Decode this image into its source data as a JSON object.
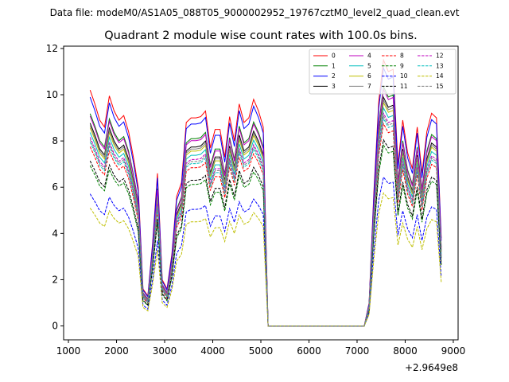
{
  "figure": {
    "suptitle": "Data file: modeM0/AS1A05_088T05_9000002952_19767cztM0_level2_quad_clean.evt"
  },
  "chart_data": {
    "type": "line",
    "title": "Quadrant 2 module wise count rates with 100.0s bins.",
    "xlabel": "",
    "ylabel": "",
    "x_offset_label": "+2.9649e8",
    "xlim": [
      900,
      9100
    ],
    "ylim": [
      -0.6,
      12.1
    ],
    "xticks": [
      1000,
      2000,
      3000,
      4000,
      5000,
      6000,
      7000,
      8000,
      9000
    ],
    "xtick_labels": [
      "1000",
      "2000",
      "3000",
      "4000",
      "5000",
      "6000",
      "7000",
      "8000",
      "9000"
    ],
    "yticks": [
      0,
      2,
      4,
      6,
      8,
      10,
      12
    ],
    "ytick_labels": [
      "0",
      "2",
      "4",
      "6",
      "8",
      "10",
      "12"
    ],
    "grid": false,
    "legend": {
      "placement": "top-right",
      "columns": 4
    },
    "x": [
      1450,
      1550,
      1650,
      1750,
      1850,
      1950,
      2050,
      2150,
      2250,
      2350,
      2450,
      2550,
      2650,
      2750,
      2850,
      2950,
      3050,
      3150,
      3250,
      3350,
      3450,
      3550,
      3650,
      3750,
      3850,
      3950,
      4050,
      4150,
      4250,
      4350,
      4450,
      4550,
      4650,
      4750,
      4850,
      4950,
      5050,
      5150,
      5250,
      5350,
      5450,
      5550,
      5650,
      5750,
      5850,
      5950,
      6050,
      6150,
      6250,
      6350,
      6450,
      6550,
      6650,
      6750,
      6850,
      6950,
      7050,
      7150,
      7250,
      7350,
      7450,
      7550,
      7650,
      7750,
      7850,
      7950,
      8050,
      8150,
      8250,
      8350,
      8450,
      8550,
      8650,
      8750
    ],
    "series": [
      {
        "name": "0",
        "color": "#ff0000",
        "dash": "solid",
        "scale": 1.0,
        "values": [
          10.2,
          9.6,
          8.9,
          8.6,
          9.95,
          9.3,
          8.9,
          9.1,
          8.4,
          7.3,
          6.0,
          1.6,
          1.3,
          3.6,
          6.6,
          2.0,
          1.6,
          3.1,
          5.6,
          6.2,
          8.8,
          9.0,
          9.0,
          9.05,
          9.3,
          7.7,
          8.5,
          8.5,
          7.3,
          9.05,
          8.0,
          9.6,
          8.8,
          9.0,
          9.8,
          9.3,
          8.6,
          0,
          0,
          0,
          0,
          0,
          0,
          0,
          0,
          0,
          0,
          0,
          0,
          0,
          0,
          0,
          0,
          0,
          0,
          0,
          0,
          0,
          1.0,
          5.8,
          9.7,
          11.5,
          11.0,
          11.1,
          7.0,
          8.9,
          7.5,
          6.8,
          8.6,
          6.6,
          8.4,
          9.2,
          9.0,
          3.8
        ]
      },
      {
        "name": "1",
        "color": "#008000",
        "dash": "solid",
        "scale": 0.9
      },
      {
        "name": "2",
        "color": "#0000ff",
        "dash": "solid",
        "scale": 0.97
      },
      {
        "name": "3",
        "color": "#000000",
        "dash": "solid",
        "scale": 0.86
      },
      {
        "name": "4",
        "color": "#bf00bf",
        "dash": "solid",
        "scale": 0.89
      },
      {
        "name": "5",
        "color": "#00bfbf",
        "dash": "solid",
        "scale": 0.82
      },
      {
        "name": "6",
        "color": "#bfbf00",
        "dash": "solid",
        "scale": 0.84
      },
      {
        "name": "7",
        "color": "#808080",
        "dash": "solid",
        "scale": 0.85
      },
      {
        "name": "8",
        "color": "#ff0000",
        "dash": "dashed",
        "scale": 0.76
      },
      {
        "name": "9",
        "color": "#008000",
        "dash": "dashed",
        "scale": 0.68
      },
      {
        "name": "10",
        "color": "#0000ff",
        "dash": "dashed",
        "scale": 0.56
      },
      {
        "name": "11",
        "color": "#000000",
        "dash": "dashed",
        "scale": 0.7
      },
      {
        "name": "12",
        "color": "#bf00bf",
        "dash": "dashed",
        "scale": 0.8
      },
      {
        "name": "13",
        "color": "#00bfbf",
        "dash": "dashed",
        "scale": 0.78
      },
      {
        "name": "14",
        "color": "#bfbf00",
        "dash": "dashed",
        "scale": 0.5
      },
      {
        "name": "15",
        "color": "#808080",
        "dash": "dashed",
        "scale": 0.79
      }
    ]
  }
}
